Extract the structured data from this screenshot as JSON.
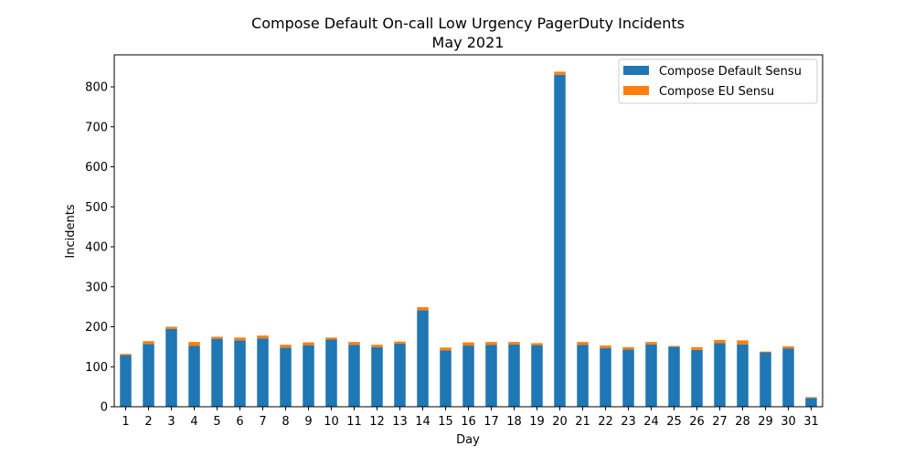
{
  "chart_data": {
    "type": "bar",
    "stacked": true,
    "title": "Compose Default On-call Low Urgency PagerDuty Incidents",
    "subtitle": "May 2021",
    "xlabel": "Day",
    "ylabel": "Incidents",
    "ylim": [
      0,
      880
    ],
    "yticks": [
      0,
      100,
      200,
      300,
      400,
      500,
      600,
      700,
      800
    ],
    "categories": [
      "1",
      "2",
      "3",
      "4",
      "5",
      "6",
      "7",
      "8",
      "9",
      "10",
      "11",
      "12",
      "13",
      "14",
      "15",
      "16",
      "17",
      "18",
      "19",
      "20",
      "21",
      "22",
      "23",
      "24",
      "25",
      "26",
      "27",
      "28",
      "29",
      "30",
      "31"
    ],
    "series": [
      {
        "name": "Compose Default Sensu",
        "color": "#1f77b4",
        "values": [
          129,
          157,
          195,
          152,
          170,
          166,
          171,
          148,
          154,
          168,
          155,
          149,
          158,
          241,
          141,
          153,
          155,
          156,
          154,
          830,
          155,
          147,
          143,
          156,
          150,
          142,
          159,
          156,
          136,
          146,
          22
        ]
      },
      {
        "name": "Compose EU Sensu",
        "color": "#ff7f0e",
        "values": [
          3,
          7,
          5,
          10,
          5,
          7,
          7,
          7,
          7,
          5,
          7,
          6,
          5,
          8,
          7,
          8,
          7,
          6,
          5,
          8,
          7,
          6,
          6,
          6,
          2,
          7,
          8,
          10,
          2,
          5,
          2
        ]
      }
    ],
    "legend_position": "upper-right",
    "grid": false
  }
}
